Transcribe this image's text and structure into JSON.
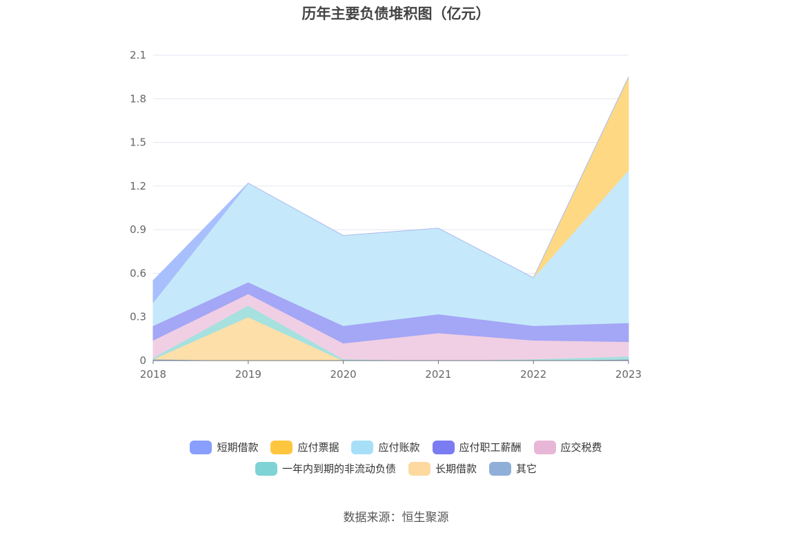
{
  "title": "历年主要负债堆积图（亿元）",
  "source": "数据来源：恒生聚源",
  "chart_data": {
    "type": "area",
    "stacked": true,
    "categories": [
      "2018",
      "2019",
      "2020",
      "2021",
      "2022",
      "2023"
    ],
    "ylim": [
      0,
      2.1
    ],
    "yticks": [
      "0",
      "0.3",
      "0.6",
      "0.9",
      "1.2",
      "1.5",
      "1.8",
      "2.1"
    ],
    "grid": true,
    "legend_position": "bottom",
    "series": [
      {
        "name": "其它",
        "color": "#8eadd8",
        "values": [
          0.01,
          0.0,
          0.0,
          0.0,
          0.0,
          0.01
        ]
      },
      {
        "name": "长期借款",
        "color": "#fddfa9",
        "values": [
          0.0,
          0.3,
          0.0,
          0.0,
          0.0,
          0.0
        ]
      },
      {
        "name": "一年内到期的非流动负债",
        "color": "#a6e1df",
        "values": [
          0.01,
          0.08,
          0.01,
          0.0,
          0.01,
          0.02
        ]
      },
      {
        "name": "应交税费",
        "color": "#f0cfe4",
        "values": [
          0.12,
          0.08,
          0.11,
          0.19,
          0.13,
          0.1
        ]
      },
      {
        "name": "应付职工薪酬",
        "color": "#a4a6f6",
        "values": [
          0.1,
          0.08,
          0.12,
          0.13,
          0.1,
          0.13
        ]
      },
      {
        "name": "应付账款",
        "color": "#c5e9fb",
        "values": [
          0.16,
          0.68,
          0.62,
          0.59,
          0.33,
          1.05
        ]
      },
      {
        "name": "应付票据",
        "color": "#fed882",
        "values": [
          0.0,
          0.0,
          0.0,
          0.0,
          0.0,
          0.64
        ]
      },
      {
        "name": "短期借款",
        "color": "#a8bffe",
        "values": [
          0.15,
          0.0,
          0.0,
          0.0,
          0.0,
          0.0
        ]
      }
    ],
    "legend": [
      [
        {
          "name": "短期借款",
          "color": "#889ffe"
        },
        {
          "name": "应付票据",
          "color": "#fec63f"
        },
        {
          "name": "应付账款",
          "color": "#a8dff8"
        },
        {
          "name": "应付职工薪酬",
          "color": "#7b7cf2"
        },
        {
          "name": "应交税费",
          "color": "#e8b7d8"
        }
      ],
      [
        {
          "name": "一年内到期的非流动负债",
          "color": "#7fd3d4"
        },
        {
          "name": "长期借款",
          "color": "#fdd9a0"
        },
        {
          "name": "其它",
          "color": "#8fafd9"
        }
      ]
    ]
  }
}
